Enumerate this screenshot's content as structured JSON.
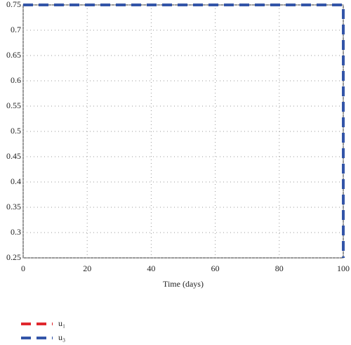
{
  "chart_data": {
    "type": "line",
    "x_label": "Time (days)",
    "x": [
      0,
      100,
      100
    ],
    "series": [
      {
        "name": "u₁",
        "color": "#e0282e",
        "values": [
          0.75,
          0.75,
          0.25
        ]
      },
      {
        "name": "u₃",
        "color": "#3355a8",
        "values": [
          0.75,
          0.75,
          0.25
        ]
      }
    ],
    "xlim": [
      0,
      100
    ],
    "xticks": [
      0,
      20,
      40,
      60,
      80,
      100
    ],
    "ylim": [
      0.25,
      0.75
    ],
    "yticks": [
      0.25,
      0.3,
      0.35,
      0.4,
      0.45,
      0.5,
      0.55,
      0.6,
      0.65,
      0.7,
      0.75
    ],
    "grid": true,
    "legend": "bottom-left"
  }
}
